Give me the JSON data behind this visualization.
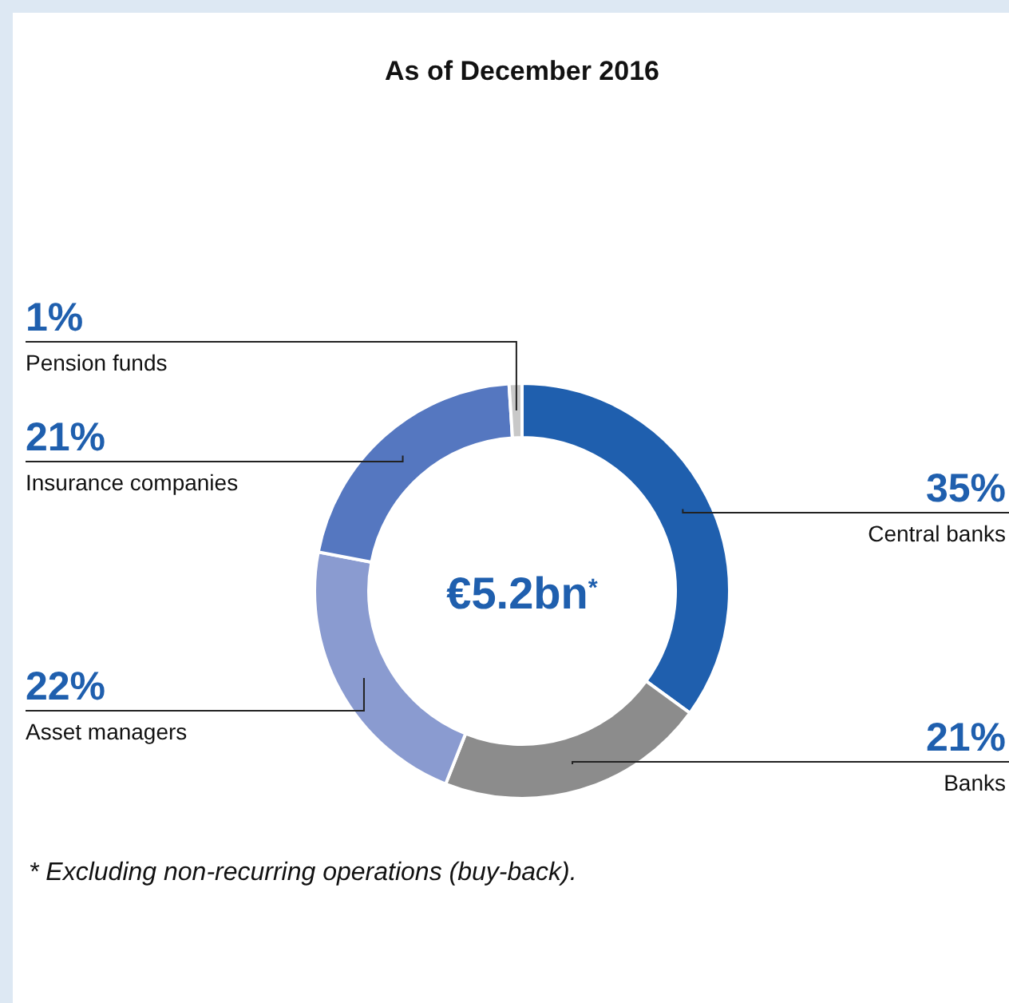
{
  "chart_data": {
    "type": "donut",
    "title": "As of December 2016",
    "categories": [
      "Central banks",
      "Banks",
      "Asset managers",
      "Insurance companies",
      "Pension funds"
    ],
    "values": [
      35,
      21,
      22,
      21,
      1
    ],
    "colors": [
      "#1f5fae",
      "#8c8c8c",
      "#8a9bd0",
      "#5577c0",
      "#c8c8c8"
    ],
    "value_labels": [
      "35%",
      "21%",
      "22%",
      "21%",
      "1%"
    ],
    "annotations": [
      "€5.2bn$^{*}$",
      "* Excluding non-recurring operations (buy-back)."
    ]
  }
}
